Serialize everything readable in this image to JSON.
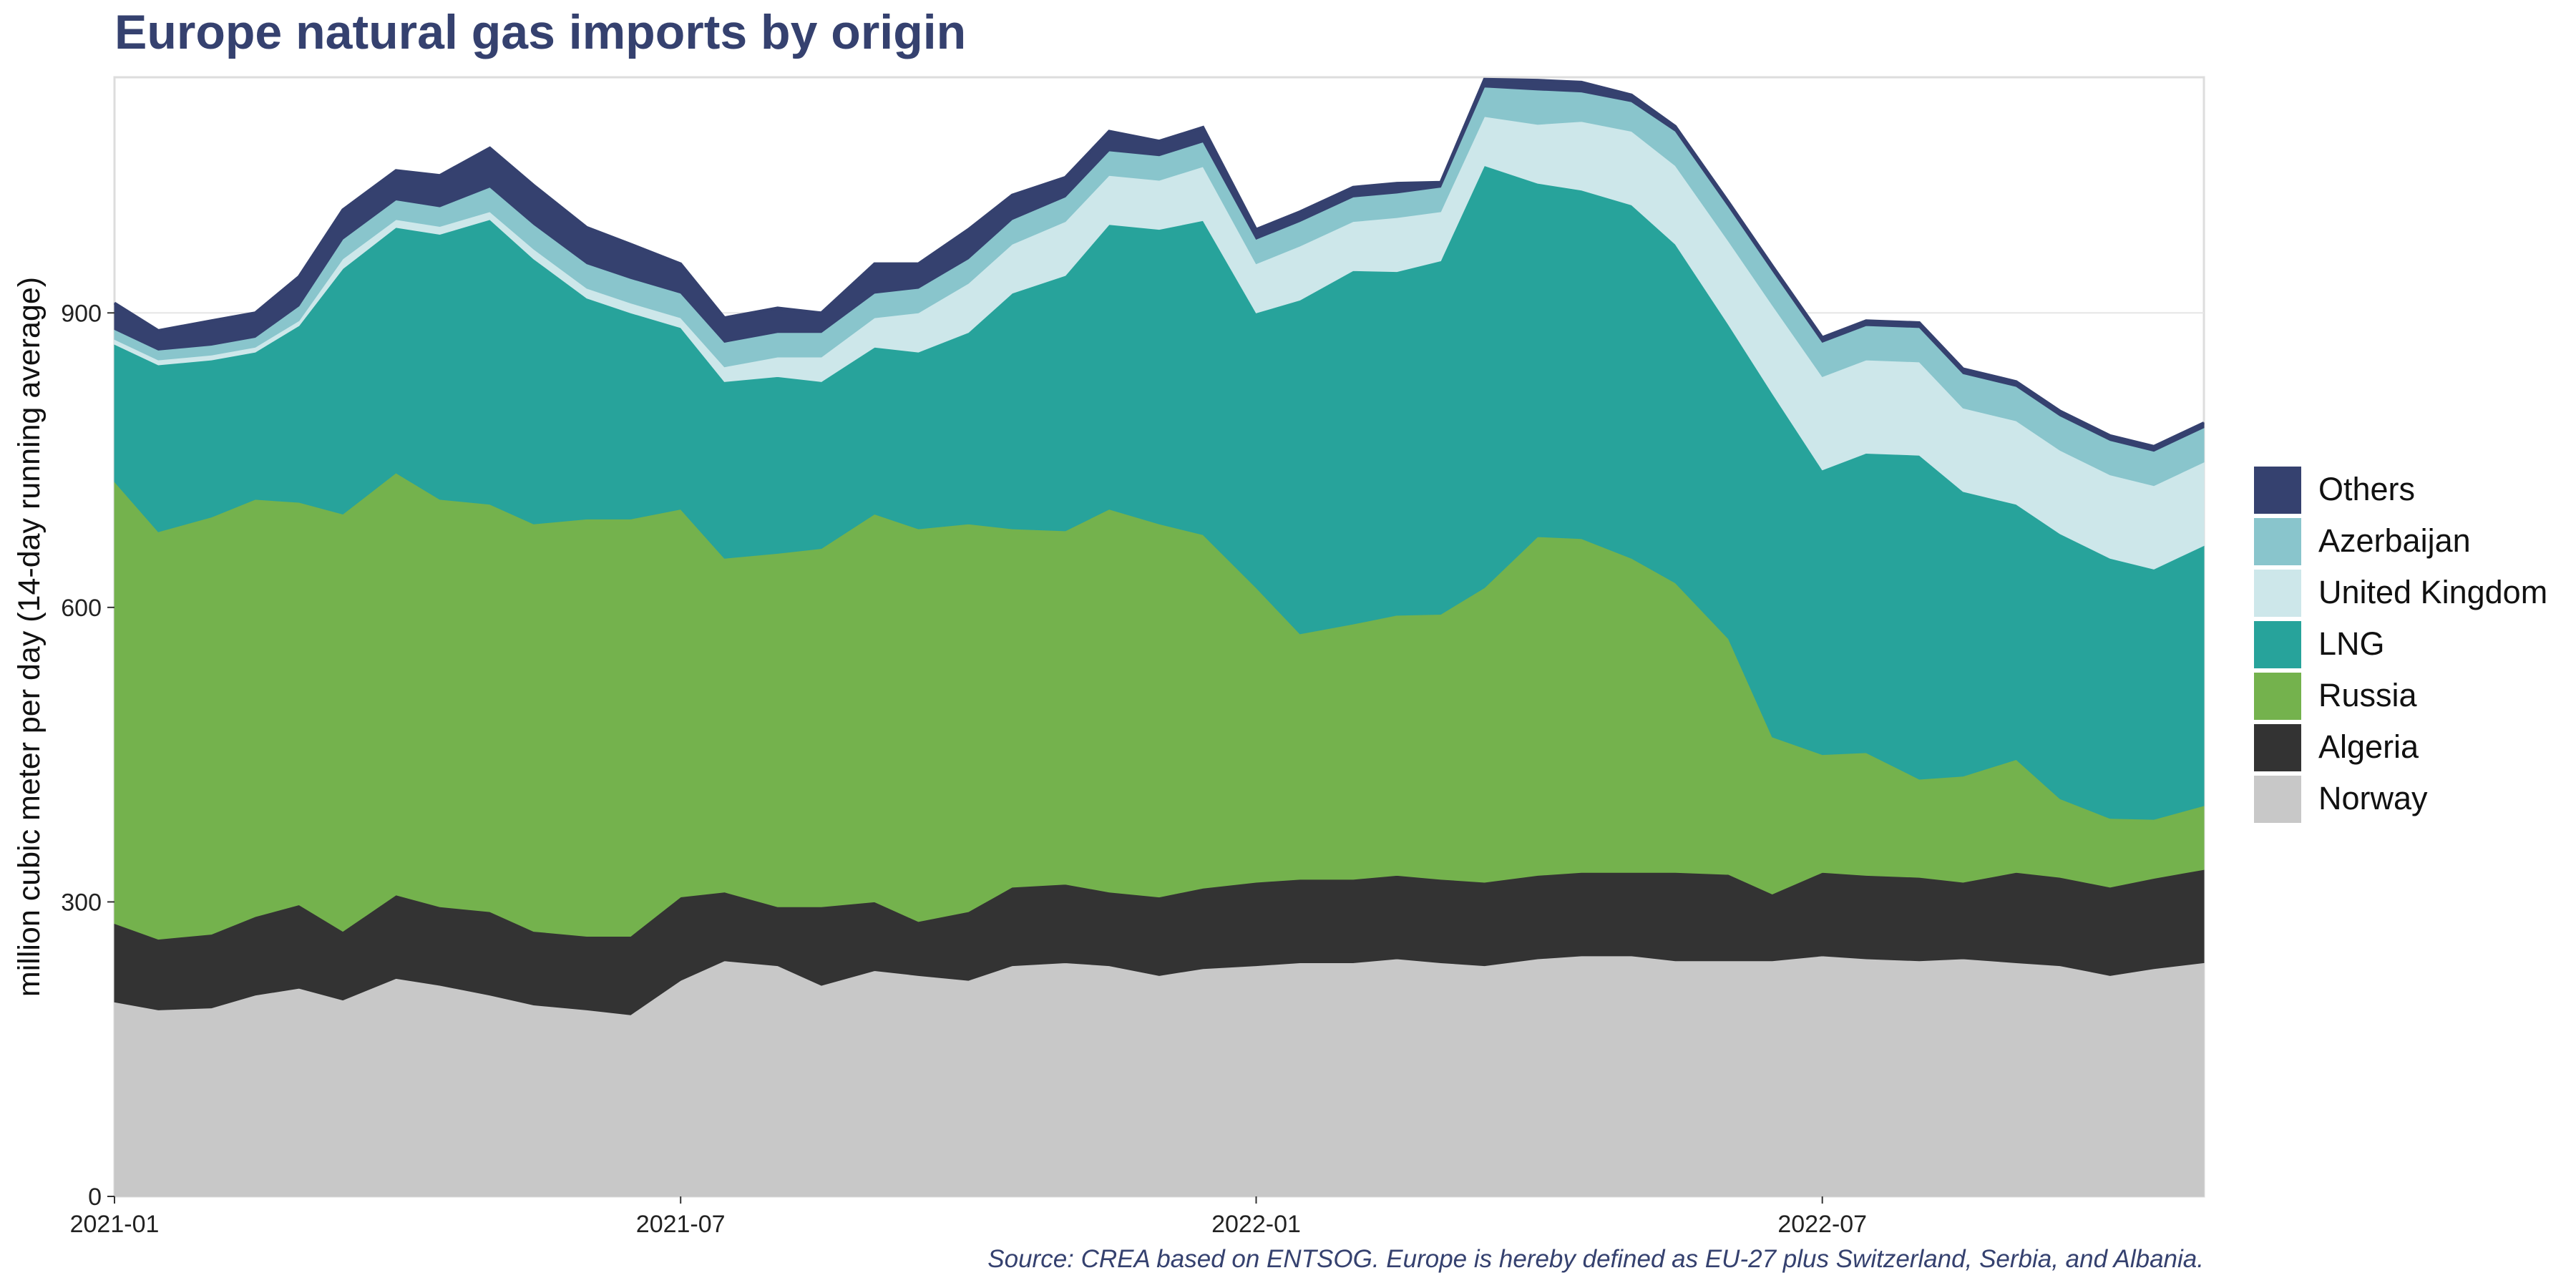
{
  "title": "Europe natural gas imports by origin",
  "source": "Source: CREA based on ENTSOG. Europe is hereby defined as EU-27 plus Switzerland, Serbia, and Albania.",
  "chart_data": {
    "type": "area",
    "stacked": true,
    "title": "Europe natural gas imports by origin",
    "xlabel": "",
    "ylabel": "million cubic meter per day (14-day running average)",
    "xlim": [
      "2021-01-01",
      "2022-10-31"
    ],
    "ylim": [
      0,
      1140
    ],
    "x_ticks": [
      "2021-01",
      "2021-07",
      "2022-01",
      "2022-07"
    ],
    "y_ticks": [
      0,
      300,
      600,
      900
    ],
    "grid": true,
    "legend_position": "right",
    "x": [
      "2021-01-01",
      "2021-01-15",
      "2021-02-01",
      "2021-02-15",
      "2021-03-01",
      "2021-03-15",
      "2021-04-01",
      "2021-04-15",
      "2021-05-01",
      "2021-05-15",
      "2021-06-01",
      "2021-06-15",
      "2021-07-01",
      "2021-07-15",
      "2021-08-01",
      "2021-08-15",
      "2021-09-01",
      "2021-09-15",
      "2021-10-01",
      "2021-10-15",
      "2021-11-01",
      "2021-11-15",
      "2021-12-01",
      "2021-12-15",
      "2022-01-01",
      "2022-01-15",
      "2022-02-01",
      "2022-02-15",
      "2022-03-01",
      "2022-03-15",
      "2022-04-01",
      "2022-04-15",
      "2022-05-01",
      "2022-05-15",
      "2022-06-01",
      "2022-06-15",
      "2022-07-01",
      "2022-07-15",
      "2022-08-01",
      "2022-08-15",
      "2022-09-01",
      "2022-09-15",
      "2022-10-01",
      "2022-10-15",
      "2022-10-31"
    ],
    "series": [
      {
        "name": "Norway",
        "color": "#c8c8c8",
        "values": [
          198,
          190,
          192,
          205,
          212,
          200,
          222,
          215,
          205,
          195,
          190,
          185,
          220,
          240,
          235,
          215,
          230,
          225,
          220,
          235,
          238,
          235,
          225,
          232,
          235,
          238,
          238,
          242,
          238,
          235,
          242,
          245,
          245,
          240,
          240,
          240,
          245,
          242,
          240,
          242,
          238,
          235,
          225,
          232,
          238
        ]
      },
      {
        "name": "Algeria",
        "color": "#333333",
        "values": [
          80,
          72,
          75,
          80,
          85,
          70,
          85,
          80,
          85,
          75,
          75,
          80,
          85,
          70,
          60,
          80,
          70,
          55,
          70,
          80,
          80,
          75,
          80,
          82,
          85,
          85,
          85,
          85,
          85,
          85,
          85,
          85,
          85,
          90,
          88,
          68,
          85,
          85,
          85,
          78,
          92,
          90,
          90,
          92,
          95
        ]
      },
      {
        "name": "Russia",
        "color": "#74b24d",
        "values": [
          450,
          415,
          425,
          425,
          410,
          425,
          430,
          415,
          415,
          415,
          425,
          425,
          395,
          340,
          360,
          365,
          395,
          400,
          395,
          365,
          360,
          390,
          380,
          360,
          300,
          250,
          260,
          265,
          270,
          300,
          345,
          340,
          320,
          295,
          240,
          160,
          120,
          125,
          100,
          108,
          115,
          80,
          70,
          60,
          65
        ]
      },
      {
        "name": "LNG",
        "color": "#27a39b",
        "values": [
          140,
          170,
          160,
          150,
          180,
          250,
          250,
          270,
          290,
          270,
          225,
          210,
          185,
          180,
          180,
          170,
          170,
          180,
          195,
          240,
          260,
          290,
          300,
          320,
          280,
          340,
          360,
          350,
          360,
          430,
          360,
          355,
          360,
          345,
          320,
          350,
          290,
          305,
          330,
          290,
          260,
          270,
          265,
          255,
          265
        ]
      },
      {
        "name": "United Kingdom",
        "color": "#cde7ea",
        "values": [
          5,
          5,
          5,
          5,
          5,
          10,
          8,
          8,
          8,
          10,
          10,
          10,
          10,
          15,
          20,
          25,
          30,
          40,
          50,
          50,
          55,
          50,
          50,
          55,
          50,
          55,
          50,
          55,
          50,
          50,
          60,
          70,
          75,
          80,
          85,
          90,
          95,
          95,
          95,
          85,
          85,
          85,
          85,
          85,
          85
        ]
      },
      {
        "name": "Azerbaijan",
        "color": "#89c5cc",
        "values": [
          10,
          10,
          10,
          10,
          15,
          20,
          20,
          20,
          25,
          25,
          25,
          25,
          25,
          25,
          25,
          25,
          25,
          25,
          25,
          25,
          25,
          25,
          25,
          25,
          25,
          25,
          25,
          25,
          25,
          30,
          35,
          30,
          30,
          35,
          35,
          35,
          35,
          35,
          35,
          35,
          35,
          35,
          35,
          35,
          35
        ]
      },
      {
        "name": "Others",
        "color": "#35416f",
        "values": [
          27,
          20,
          25,
          25,
          30,
          30,
          30,
          32,
          40,
          40,
          37,
          35,
          30,
          25,
          25,
          20,
          30,
          25,
          30,
          25,
          20,
          20,
          15,
          15,
          10,
          10,
          10,
          10,
          5,
          8,
          10,
          10,
          7,
          5,
          5,
          5,
          5,
          5,
          5,
          5,
          5,
          5,
          5,
          5,
          5
        ]
      }
    ]
  },
  "legend": {
    "items": [
      {
        "label": "Others",
        "color": "#35416f"
      },
      {
        "label": "Azerbaijan",
        "color": "#89c5cc"
      },
      {
        "label": "United Kingdom",
        "color": "#cde7ea"
      },
      {
        "label": "LNG",
        "color": "#27a39b"
      },
      {
        "label": "Russia",
        "color": "#74b24d"
      },
      {
        "label": "Algeria",
        "color": "#333333"
      },
      {
        "label": "Norway",
        "color": "#c8c8c8"
      }
    ]
  }
}
